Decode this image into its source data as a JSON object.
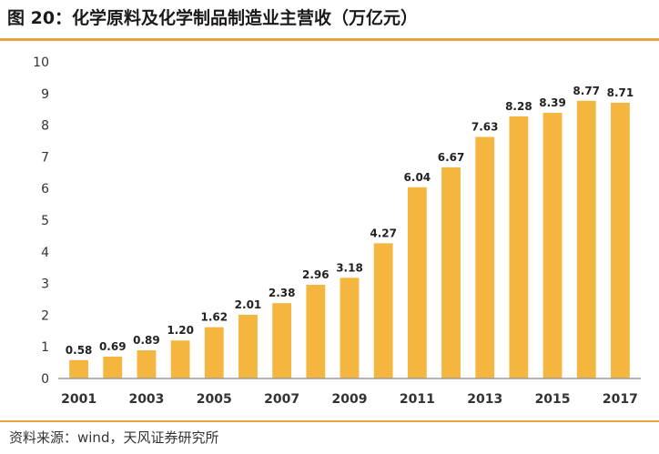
{
  "title": "图 20：化学原料及化学制品制造业主营收（万亿元）",
  "source": "资料来源：wind，天风证券研究所",
  "colors": {
    "bar": "#f4b63f",
    "accent": "#e8a33a",
    "axis": "#9a9a9a"
  },
  "chart_data": {
    "type": "bar",
    "title": "化学原料及化学制品制造业主营收（万亿元）",
    "xlabel": "",
    "ylabel": "",
    "ylim": [
      0,
      10
    ],
    "yticks": [
      0,
      1,
      2,
      3,
      4,
      5,
      6,
      7,
      8,
      9,
      10
    ],
    "categories": [
      "2001",
      "2002",
      "2003",
      "2004",
      "2005",
      "2006",
      "2007",
      "2008",
      "2009",
      "2010",
      "2011",
      "2012",
      "2013",
      "2014",
      "2015",
      "2016",
      "2017"
    ],
    "xtick_labels": [
      "2001",
      "2003",
      "2005",
      "2007",
      "2009",
      "2011",
      "2013",
      "2015",
      "2017"
    ],
    "values": [
      0.58,
      0.69,
      0.89,
      1.2,
      1.62,
      2.01,
      2.38,
      2.96,
      3.18,
      4.27,
      6.04,
      6.67,
      7.63,
      8.28,
      8.39,
      8.77,
      8.71
    ],
    "value_labels": [
      "0.58",
      "0.69",
      "0.89",
      "1.20",
      "1.62",
      "2.01",
      "2.38",
      "2.96",
      "3.18",
      "4.27",
      "6.04",
      "6.67",
      "7.63",
      "8.28",
      "8.39",
      "8.77",
      "8.71"
    ],
    "grid": false,
    "legend": "none"
  }
}
